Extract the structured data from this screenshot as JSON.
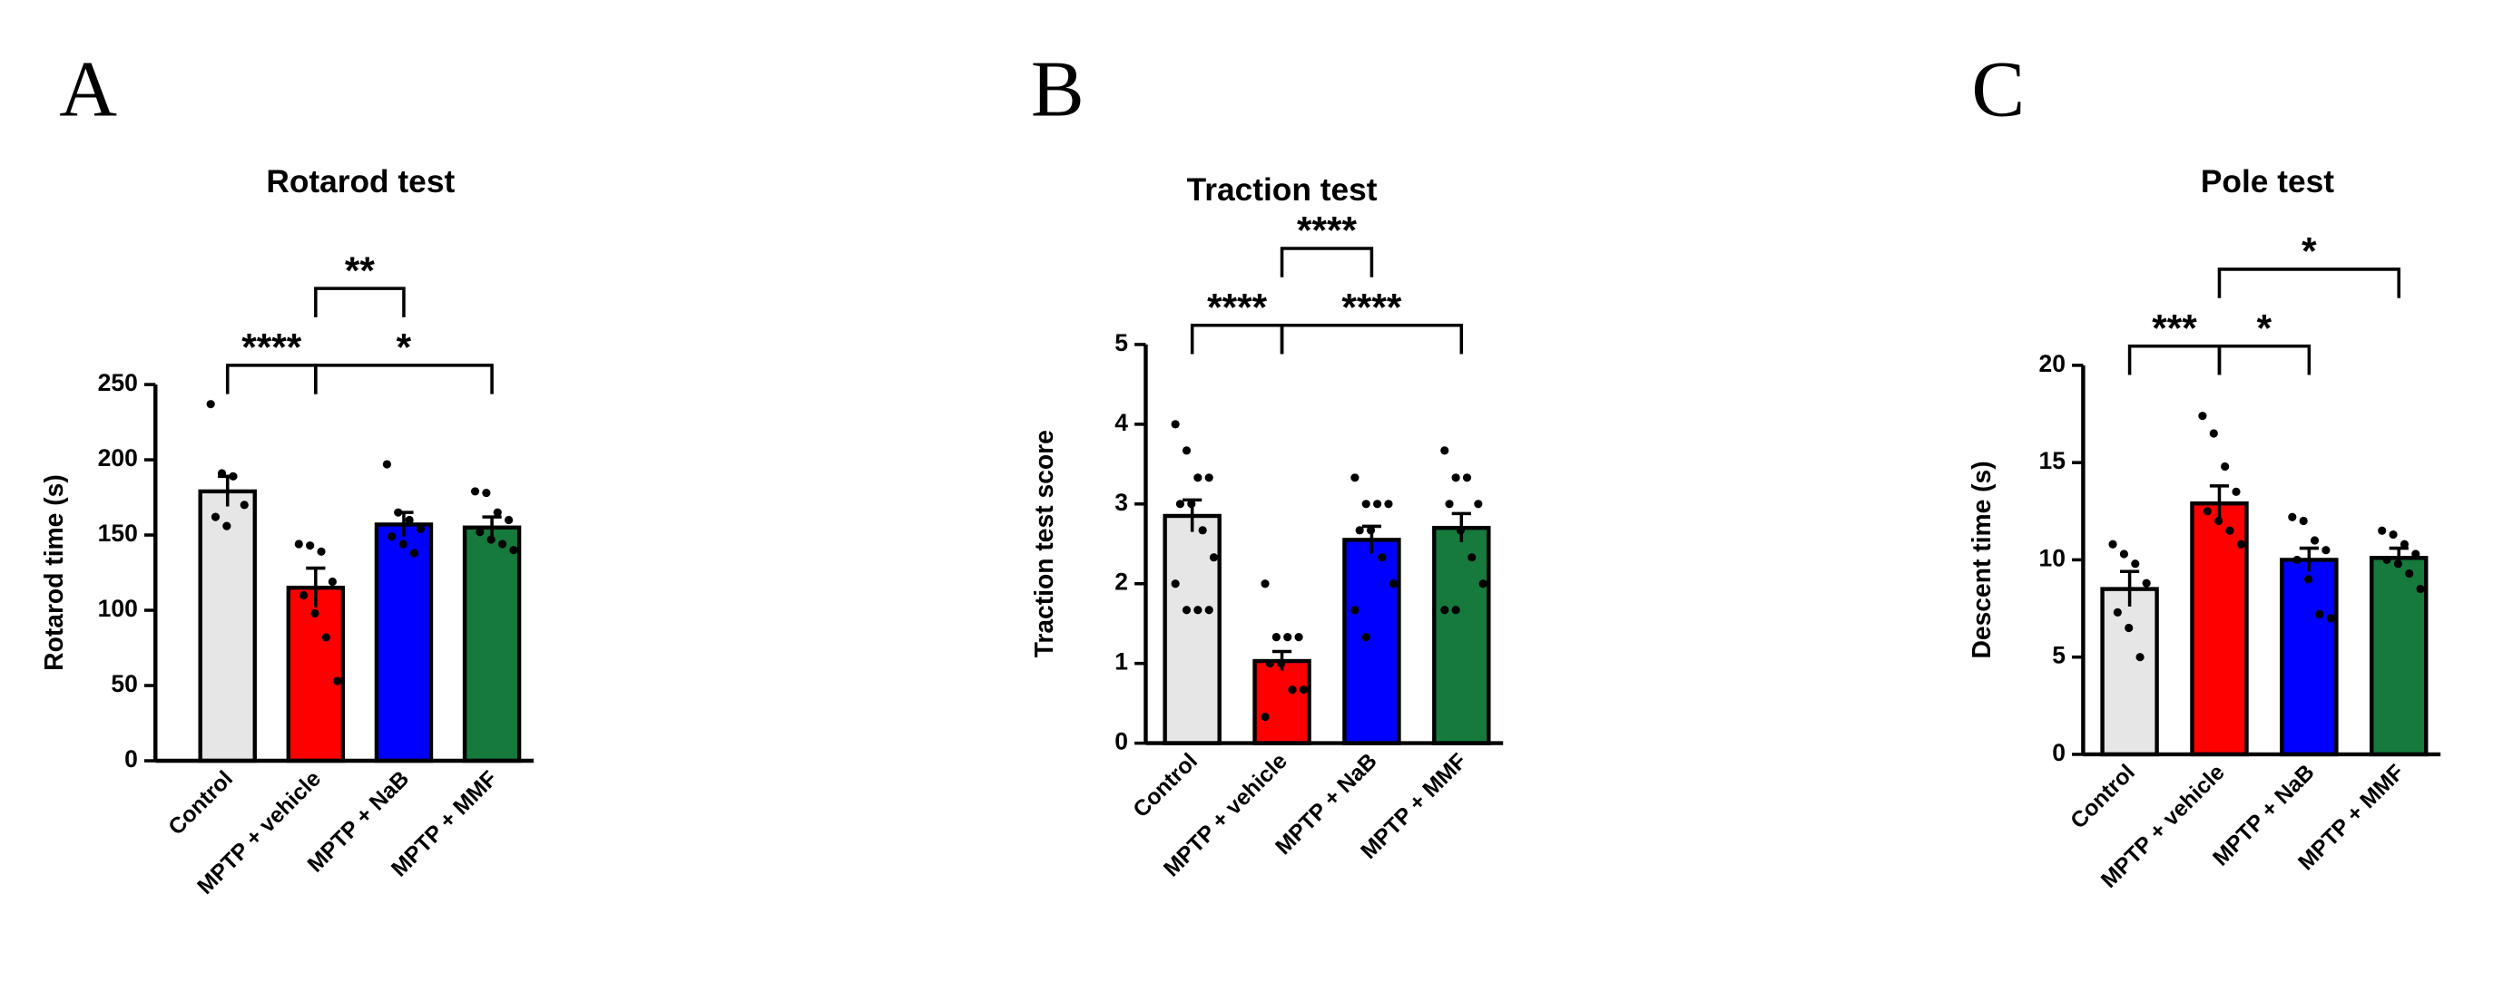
{
  "chart_data": [
    {
      "type": "bar",
      "panel": "A",
      "title": "Rotarod test",
      "ylabel": "Rotarod time (s)",
      "categories": [
        "Control",
        "MPTP + vehicle",
        "MPTP + NaB",
        "MPTP + MMF"
      ],
      "values": [
        179,
        115,
        157,
        155
      ],
      "errors": [
        10,
        13,
        8,
        7
      ],
      "colors": [
        "#e6e6e6",
        "#ff0000",
        "#0000ff",
        "#157a3c"
      ],
      "points": [
        [
          237,
          191,
          189,
          170,
          162,
          156
        ],
        [
          144,
          143,
          139,
          119,
          110,
          98,
          82,
          53
        ],
        [
          197,
          165,
          160,
          154,
          149,
          144,
          138
        ],
        [
          179,
          178,
          165,
          160,
          152,
          147,
          144,
          140
        ]
      ],
      "ylim": [
        0,
        250
      ],
      "yticks": [
        0,
        50,
        100,
        150,
        200,
        250
      ],
      "comparisons": [
        {
          "groups": [
            "Control",
            "MPTP + vehicle"
          ],
          "label": "****"
        },
        {
          "groups": [
            "MPTP + vehicle",
            "MPTP + MMF"
          ],
          "label": "*"
        },
        {
          "groups": [
            "MPTP + vehicle",
            "MPTP + NaB"
          ],
          "label": "**"
        }
      ]
    },
    {
      "type": "bar",
      "panel": "B",
      "title": "Traction test",
      "ylabel": "Traction test score",
      "categories": [
        "Control",
        "MPTP + vehicle",
        "MPTP + NaB",
        "MPTP + MMF"
      ],
      "values": [
        2.85,
        1.03,
        2.55,
        2.7
      ],
      "errors": [
        0.2,
        0.12,
        0.17,
        0.18
      ],
      "colors": [
        "#e6e6e6",
        "#ff0000",
        "#0000ff",
        "#157a3c"
      ],
      "points": [
        [
          4.0,
          3.67,
          3.33,
          3.33,
          3.0,
          3.0,
          2.67,
          2.33,
          2.0,
          1.67,
          1.67,
          1.67
        ],
        [
          2.0,
          1.33,
          1.33,
          1.33,
          1.0,
          1.0,
          0.67,
          0.67,
          0.33
        ],
        [
          3.33,
          3.0,
          3.0,
          3.0,
          2.67,
          2.67,
          2.33,
          2.0,
          1.67,
          1.33
        ],
        [
          3.67,
          3.33,
          3.33,
          3.0,
          3.0,
          2.67,
          2.33,
          2.0,
          1.67,
          1.67
        ]
      ],
      "ylim": [
        0,
        5
      ],
      "yticks": [
        0,
        1,
        2,
        3,
        4,
        5
      ],
      "comparisons": [
        {
          "groups": [
            "Control",
            "MPTP + vehicle"
          ],
          "label": "****"
        },
        {
          "groups": [
            "MPTP + vehicle",
            "MPTP + MMF"
          ],
          "label": "****"
        },
        {
          "groups": [
            "MPTP + vehicle",
            "MPTP + NaB"
          ],
          "label": "****"
        }
      ]
    },
    {
      "type": "bar",
      "panel": "C",
      "title": "Pole test",
      "ylabel": "Descent time (s)",
      "categories": [
        "Control",
        "MPTP + vehicle",
        "MPTP + NaB",
        "MPTP + MMF"
      ],
      "values": [
        8.5,
        12.9,
        10.0,
        10.1
      ],
      "errors": [
        0.9,
        0.9,
        0.6,
        0.5
      ],
      "colors": [
        "#e6e6e6",
        "#ff0000",
        "#0000ff",
        "#157a3c"
      ],
      "points": [
        [
          10.8,
          10.3,
          9.8,
          8.8,
          7.3,
          6.5,
          5.0
        ],
        [
          17.4,
          16.5,
          14.8,
          13.5,
          12.5,
          12.0,
          11.5,
          10.8
        ],
        [
          12.2,
          12.0,
          11.0,
          10.5,
          10.0,
          9.0,
          7.2,
          7.0
        ],
        [
          11.5,
          11.3,
          10.8,
          10.3,
          10.0,
          9.8,
          9.3,
          8.5
        ]
      ],
      "ylim": [
        0,
        20
      ],
      "yticks": [
        0,
        5,
        10,
        15,
        20
      ],
      "comparisons": [
        {
          "groups": [
            "Control",
            "MPTP + vehicle"
          ],
          "label": "***"
        },
        {
          "groups": [
            "MPTP + vehicle",
            "MPTP + NaB"
          ],
          "label": "*"
        },
        {
          "groups": [
            "MPTP + vehicle",
            "MPTP + MMF"
          ],
          "label": "*"
        }
      ]
    }
  ]
}
